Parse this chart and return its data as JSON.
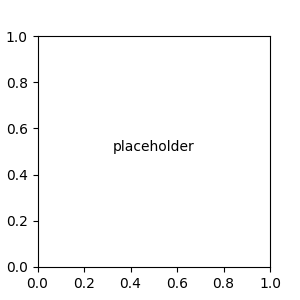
{
  "bg_color": "#e8e8e8",
  "bond_color": "#1a1a1a",
  "N_color": "#0000ff",
  "O_color": "#ff0000",
  "S_color": "#b8b800",
  "H_color": "#4db8b8",
  "figsize": [
    3.0,
    3.0
  ],
  "dpi": 100
}
